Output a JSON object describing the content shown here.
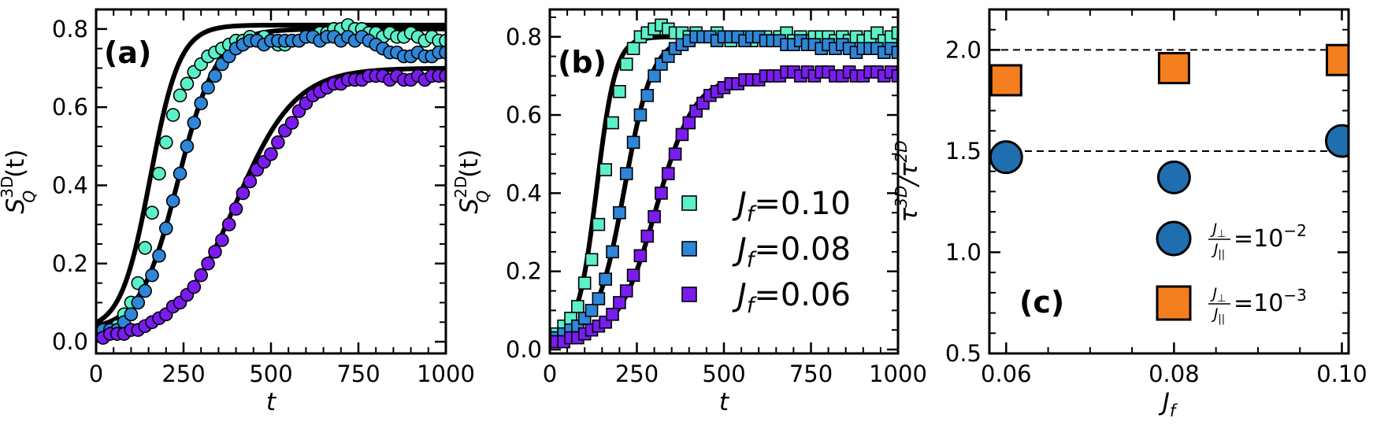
{
  "chart_data": [
    {
      "panel": "a",
      "type": "scatter",
      "panel_label": "(a)",
      "xlabel": "t",
      "ylabel_main": "S",
      "ylabel_sub": "Q",
      "ylabel_sup": "3D",
      "ylabel_tail": "(t)",
      "xlim": [
        0,
        1000
      ],
      "ylim": [
        -0.03,
        0.85
      ],
      "xticks": [
        0,
        250,
        500,
        750,
        1000
      ],
      "xtick_labels": [
        "0",
        "250",
        "500",
        "750",
        "1000"
      ],
      "yticks": [
        0.0,
        0.2,
        0.4,
        0.6,
        0.8
      ],
      "ytick_labels": [
        "0.0",
        "0.2",
        "0.4",
        "0.6",
        "0.8"
      ],
      "marker": "circle",
      "series": [
        {
          "color": "#5cf0c8",
          "x": [
            20,
            40,
            60,
            80,
            100,
            120,
            140,
            160,
            180,
            200,
            220,
            240,
            260,
            280,
            300,
            320,
            340,
            360,
            380,
            400,
            420,
            440,
            460,
            480,
            500,
            520,
            540,
            560,
            580,
            600,
            620,
            640,
            660,
            680,
            700,
            720,
            740,
            760,
            780,
            800,
            820,
            840,
            860,
            880,
            900,
            920,
            940,
            960,
            980,
            1000
          ],
          "y": [
            0.03,
            0.03,
            0.04,
            0.07,
            0.1,
            0.15,
            0.24,
            0.33,
            0.43,
            0.51,
            0.58,
            0.63,
            0.66,
            0.69,
            0.71,
            0.73,
            0.74,
            0.75,
            0.76,
            0.77,
            0.77,
            0.78,
            0.77,
            0.78,
            0.77,
            0.76,
            0.76,
            0.77,
            0.77,
            0.78,
            0.78,
            0.79,
            0.79,
            0.8,
            0.8,
            0.81,
            0.8,
            0.8,
            0.79,
            0.79,
            0.78,
            0.79,
            0.78,
            0.78,
            0.79,
            0.78,
            0.77,
            0.78,
            0.77,
            0.77
          ],
          "fit": {
            "A": 0.81,
            "t0": 155,
            "w": 42,
            "base": 0.03
          }
        },
        {
          "color": "#2e86d8",
          "x": [
            20,
            40,
            60,
            80,
            100,
            120,
            140,
            160,
            180,
            200,
            220,
            240,
            260,
            280,
            300,
            320,
            340,
            360,
            380,
            400,
            420,
            440,
            460,
            480,
            500,
            520,
            540,
            560,
            580,
            600,
            620,
            640,
            660,
            680,
            700,
            720,
            740,
            760,
            780,
            800,
            820,
            840,
            860,
            880,
            900,
            920,
            940,
            960,
            980,
            1000
          ],
          "y": [
            0.03,
            0.03,
            0.03,
            0.05,
            0.07,
            0.1,
            0.13,
            0.17,
            0.22,
            0.29,
            0.36,
            0.43,
            0.5,
            0.56,
            0.61,
            0.65,
            0.68,
            0.71,
            0.73,
            0.75,
            0.76,
            0.77,
            0.77,
            0.76,
            0.77,
            0.77,
            0.77,
            0.77,
            0.77,
            0.78,
            0.78,
            0.77,
            0.78,
            0.78,
            0.77,
            0.78,
            0.77,
            0.78,
            0.77,
            0.76,
            0.75,
            0.74,
            0.74,
            0.73,
            0.73,
            0.74,
            0.73,
            0.73,
            0.74,
            0.74
          ],
          "fit": {
            "A": 0.8,
            "t0": 235,
            "w": 55,
            "base": 0.03
          }
        },
        {
          "color": "#7a1cf0",
          "x": [
            20,
            40,
            60,
            80,
            100,
            120,
            140,
            160,
            180,
            200,
            220,
            240,
            260,
            280,
            300,
            320,
            340,
            360,
            380,
            400,
            420,
            440,
            460,
            480,
            500,
            520,
            540,
            560,
            580,
            600,
            620,
            640,
            660,
            680,
            700,
            720,
            740,
            760,
            780,
            800,
            820,
            840,
            860,
            880,
            900,
            920,
            940,
            960,
            980,
            1000
          ],
          "y": [
            0.01,
            0.02,
            0.02,
            0.02,
            0.03,
            0.03,
            0.04,
            0.05,
            0.06,
            0.07,
            0.09,
            0.1,
            0.12,
            0.14,
            0.17,
            0.2,
            0.23,
            0.26,
            0.3,
            0.34,
            0.38,
            0.41,
            0.44,
            0.46,
            0.48,
            0.51,
            0.54,
            0.56,
            0.59,
            0.61,
            0.63,
            0.64,
            0.65,
            0.66,
            0.66,
            0.67,
            0.67,
            0.67,
            0.68,
            0.68,
            0.68,
            0.67,
            0.68,
            0.67,
            0.67,
            0.68,
            0.67,
            0.68,
            0.68,
            0.68
          ],
          "fit": {
            "A": 0.7,
            "t0": 400,
            "w": 85,
            "base": 0.01
          }
        }
      ]
    },
    {
      "panel": "b",
      "type": "scatter",
      "panel_label": "(b)",
      "xlabel": "t",
      "ylabel_main": "S",
      "ylabel_sub": "Q",
      "ylabel_sup": "2D",
      "ylabel_tail": "(t)",
      "xlim": [
        0,
        1000
      ],
      "ylim": [
        -0.01,
        0.87
      ],
      "xticks": [
        0,
        250,
        500,
        750,
        1000
      ],
      "xtick_labels": [
        "0",
        "250",
        "500",
        "750",
        "1000"
      ],
      "yticks": [
        0.0,
        0.2,
        0.4,
        0.6,
        0.8
      ],
      "ytick_labels": [
        "0.0",
        "0.2",
        "0.4",
        "0.6",
        "0.8"
      ],
      "marker": "square",
      "legend": [
        {
          "sym": "J",
          "sub": "f",
          "text": "=0.10",
          "color": "#5cf0c8"
        },
        {
          "sym": "J",
          "sub": "f",
          "text": "=0.08",
          "color": "#2e86d8"
        },
        {
          "sym": "J",
          "sub": "f",
          "text": "=0.06",
          "color": "#7a1cf0"
        }
      ],
      "series": [
        {
          "color": "#5cf0c8",
          "x": [
            20,
            40,
            60,
            80,
            100,
            120,
            140,
            160,
            180,
            200,
            220,
            240,
            260,
            280,
            300,
            320,
            340,
            360,
            380,
            400,
            420,
            440,
            460,
            480,
            500,
            520,
            540,
            560,
            580,
            600,
            620,
            640,
            660,
            680,
            700,
            720,
            740,
            760,
            780,
            800,
            820,
            840,
            860,
            880,
            900,
            920,
            940,
            960,
            980,
            1000
          ],
          "y": [
            0.04,
            0.06,
            0.08,
            0.11,
            0.17,
            0.23,
            0.32,
            0.46,
            0.58,
            0.66,
            0.73,
            0.77,
            0.8,
            0.81,
            0.82,
            0.83,
            0.82,
            0.81,
            0.81,
            0.8,
            0.81,
            0.8,
            0.8,
            0.81,
            0.8,
            0.79,
            0.8,
            0.8,
            0.79,
            0.8,
            0.8,
            0.79,
            0.8,
            0.81,
            0.79,
            0.8,
            0.79,
            0.8,
            0.8,
            0.8,
            0.79,
            0.8,
            0.79,
            0.8,
            0.79,
            0.8,
            0.81,
            0.79,
            0.8,
            0.81
          ],
          "fit": {
            "A": 0.8,
            "t0": 135,
            "w": 27,
            "base": 0.03
          }
        },
        {
          "color": "#2e86d8",
          "x": [
            20,
            40,
            60,
            80,
            100,
            120,
            140,
            160,
            180,
            200,
            220,
            240,
            260,
            280,
            300,
            320,
            340,
            360,
            380,
            400,
            420,
            440,
            460,
            480,
            500,
            520,
            540,
            560,
            580,
            600,
            620,
            640,
            660,
            680,
            700,
            720,
            740,
            760,
            780,
            800,
            820,
            840,
            860,
            880,
            900,
            920,
            940,
            960,
            980,
            1000
          ],
          "y": [
            0.03,
            0.04,
            0.05,
            0.06,
            0.08,
            0.1,
            0.13,
            0.18,
            0.25,
            0.35,
            0.45,
            0.53,
            0.6,
            0.65,
            0.7,
            0.73,
            0.75,
            0.77,
            0.78,
            0.79,
            0.8,
            0.8,
            0.8,
            0.79,
            0.8,
            0.8,
            0.8,
            0.79,
            0.8,
            0.8,
            0.79,
            0.79,
            0.79,
            0.78,
            0.78,
            0.79,
            0.78,
            0.78,
            0.77,
            0.78,
            0.77,
            0.78,
            0.77,
            0.76,
            0.77,
            0.77,
            0.77,
            0.76,
            0.77,
            0.76
          ],
          "fit": {
            "A": 0.8,
            "t0": 215,
            "w": 40,
            "base": 0.03
          }
        },
        {
          "color": "#7a1cf0",
          "x": [
            20,
            40,
            60,
            80,
            100,
            120,
            140,
            160,
            180,
            200,
            220,
            240,
            260,
            280,
            300,
            320,
            340,
            360,
            380,
            400,
            420,
            440,
            460,
            480,
            500,
            520,
            540,
            560,
            580,
            600,
            620,
            640,
            660,
            680,
            700,
            720,
            740,
            760,
            780,
            800,
            820,
            840,
            860,
            880,
            900,
            920,
            940,
            960,
            980,
            1000
          ],
          "y": [
            0.02,
            0.02,
            0.03,
            0.03,
            0.04,
            0.05,
            0.06,
            0.07,
            0.09,
            0.12,
            0.15,
            0.19,
            0.24,
            0.29,
            0.34,
            0.4,
            0.45,
            0.5,
            0.55,
            0.58,
            0.61,
            0.63,
            0.65,
            0.66,
            0.67,
            0.68,
            0.68,
            0.69,
            0.69,
            0.69,
            0.7,
            0.7,
            0.7,
            0.71,
            0.71,
            0.7,
            0.71,
            0.7,
            0.71,
            0.71,
            0.7,
            0.7,
            0.71,
            0.7,
            0.7,
            0.71,
            0.71,
            0.7,
            0.71,
            0.7
          ],
          "fit": {
            "A": 0.7,
            "t0": 305,
            "w": 55,
            "base": 0.02
          }
        }
      ]
    },
    {
      "panel": "c",
      "type": "scatter",
      "panel_label": "(c)",
      "xlabel_main": "J",
      "xlabel_sub": "f",
      "ylabel_main": "τ",
      "ylabel_sup1": "3D",
      "ylabel_mid": "/τ",
      "ylabel_sup2": "2D",
      "xlim": [
        0.058,
        0.1008
      ],
      "ylim": [
        0.5,
        2.2
      ],
      "xticks": [
        0.06,
        0.08,
        0.1
      ],
      "xtick_labels": [
        "0.06",
        "0.08",
        "0.10"
      ],
      "yticks": [
        0.5,
        1.0,
        1.5,
        2.0
      ],
      "ytick_labels": [
        "0.5",
        "1.0",
        "1.5",
        "2.0"
      ],
      "hlines": [
        1.5,
        2.0
      ],
      "legend": [
        {
          "marker": "circle",
          "color": "#1f6fb0",
          "num": "J",
          "num_sub": "⊥",
          "den": "J",
          "den_sub": "||",
          "text": "=10",
          "exp": "−2"
        },
        {
          "marker": "square",
          "color": "#f57f1e",
          "num": "J",
          "num_sub": "⊥",
          "den": "J",
          "den_sub": "||",
          "text": "=10",
          "exp": "−3"
        }
      ],
      "series": [
        {
          "marker": "circle",
          "color": "#1f6fb0",
          "x": [
            0.06,
            0.08,
            0.1
          ],
          "y": [
            1.47,
            1.37,
            1.55
          ]
        },
        {
          "marker": "square",
          "color": "#f57f1e",
          "x": [
            0.06,
            0.08,
            0.1
          ],
          "y": [
            1.85,
            1.91,
            1.95
          ]
        }
      ]
    }
  ]
}
